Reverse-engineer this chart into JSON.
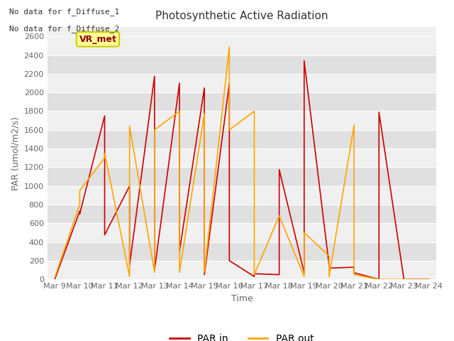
{
  "title": "Photosynthetic Active Radiation",
  "ylabel": "PAR (umol/m2/s)",
  "xlabel": "Time",
  "xlabels": [
    "Mar 9",
    "Mar 10",
    "Mar 11",
    "Mar 12",
    "Mar 13",
    "Mar 14",
    "Mar 15",
    "Mar 16",
    "Mar 17",
    "Mar 18",
    "Mar 19",
    "Mar 20",
    "Mar 21",
    "Mar 22",
    "Mar 23",
    "Mar 24"
  ],
  "par_in_x": [
    0,
    1,
    1,
    2,
    2,
    3,
    3,
    4,
    4,
    5,
    5,
    6,
    6,
    7,
    7,
    8,
    8,
    9,
    9,
    10,
    10,
    11,
    11,
    12,
    12,
    13,
    13,
    14,
    14,
    15
  ],
  "par_in_y": [
    0,
    730,
    700,
    1750,
    475,
    1000,
    150,
    2175,
    100,
    2100,
    300,
    2050,
    50,
    2100,
    200,
    30,
    60,
    50,
    1175,
    70,
    2340,
    150,
    120,
    130,
    70,
    0,
    1790,
    0,
    0,
    0
  ],
  "par_out_x": [
    0,
    1,
    1,
    2,
    2,
    3,
    3,
    4,
    4,
    5,
    5,
    6,
    6,
    7,
    7,
    8,
    8,
    9,
    9,
    10,
    10,
    11,
    11,
    12,
    12,
    13,
    13,
    14,
    14,
    15
  ],
  "par_out_y": [
    20,
    800,
    950,
    1300,
    1350,
    30,
    1640,
    75,
    1600,
    1800,
    75,
    1775,
    75,
    2490,
    1600,
    1800,
    50,
    680,
    680,
    30,
    500,
    250,
    30,
    1650,
    50,
    0,
    0,
    0,
    0,
    0
  ],
  "ylim": [
    0,
    2700
  ],
  "yticks": [
    0,
    200,
    400,
    600,
    800,
    1000,
    1200,
    1400,
    1600,
    1800,
    2000,
    2200,
    2400,
    2600
  ],
  "par_in_color": "#CC0000",
  "par_out_color": "#FFA500",
  "bg_band_light": "#F0F0F0",
  "bg_band_dark": "#E0E0E0",
  "grid_color": "#FFFFFF",
  "annotation_texts": [
    "No data for f_Diffuse_1",
    "No data for f_Diffuse_2"
  ],
  "box_label": "VR_met",
  "box_facecolor": "#FFFF99",
  "box_edgecolor": "#CCCC00",
  "title_fontsize": 11,
  "tick_fontsize": 8,
  "label_fontsize": 9
}
